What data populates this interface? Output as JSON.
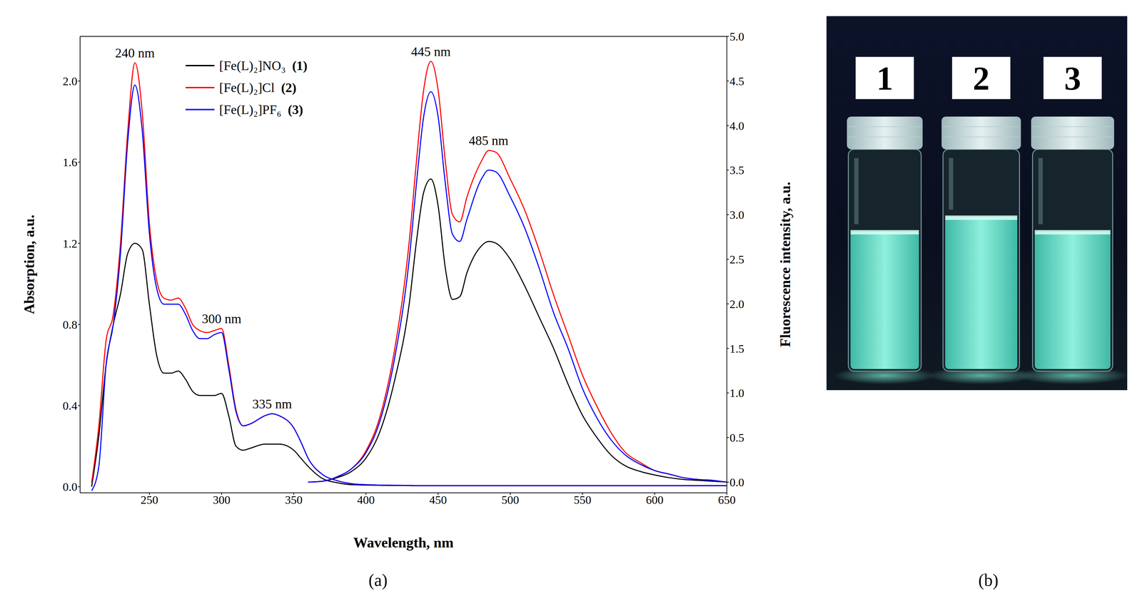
{
  "chart_data": {
    "type": "line",
    "panel_label": "(a)",
    "x_label": "Wavelength, nm",
    "y_label": "Absorption, a.u.",
    "y2_label": "Fluorescence intensity, a.u.",
    "x": [
      210,
      215,
      220,
      225,
      230,
      235,
      240,
      245,
      250,
      255,
      260,
      265,
      270,
      275,
      280,
      285,
      290,
      295,
      300,
      305,
      310,
      315,
      320,
      330,
      335,
      340,
      350,
      355,
      360,
      370,
      380,
      390,
      400,
      410,
      420,
      430,
      435,
      440,
      445,
      450,
      455,
      460,
      465,
      470,
      480,
      485,
      490,
      500,
      510,
      520,
      530,
      540,
      550,
      560,
      570,
      580,
      590,
      600,
      610,
      620,
      630,
      640,
      650
    ],
    "xlim": [
      202,
      650
    ],
    "xticks": [
      250,
      300,
      350,
      400,
      450,
      500,
      550,
      600,
      650
    ],
    "ylim": [
      -0.03,
      2.22
    ],
    "yticks": [
      {
        "value": 0,
        "label": "0.0"
      },
      0.4,
      0.8,
      1.2,
      1.6,
      {
        "value": 2,
        "label": "2.0"
      }
    ],
    "y2lim": [
      -0.12,
      5.0
    ],
    "y2ticks": [
      {
        "value": 0,
        "label": "0.0"
      },
      0.5,
      {
        "value": 1,
        "label": "1.0"
      },
      1.5,
      {
        "value": 2,
        "label": "2.0"
      },
      2.5,
      {
        "value": 3,
        "label": "3.0"
      },
      3.5,
      {
        "value": 4,
        "label": "4.0"
      },
      4.5,
      {
        "value": 5,
        "label": "5.0"
      }
    ],
    "grid": false,
    "legend": "upper left",
    "series": [
      {
        "name": "[Fe(L)₂]NO₃ (1)",
        "color": "#000000",
        "values": [
          0,
          0.25,
          0.6,
          0.8,
          0.95,
          1.15,
          1.2,
          1.17,
          0.9,
          0.65,
          0.56,
          0.56,
          0.57,
          0.53,
          0.47,
          0.45,
          0.45,
          0.45,
          0.46,
          0.35,
          0.2,
          0.18,
          0.19,
          0.21,
          0.21,
          0.21,
          0.18,
          0.14,
          0.1,
          0.04,
          0.02,
          0.01,
          0.008,
          0.007,
          0.006,
          0.006,
          0.005,
          0.005,
          0.005,
          0.005,
          0.005,
          0.005,
          0.005,
          0.005,
          0.005,
          0.005,
          0.005,
          0.005,
          0.005,
          0.005,
          0.005,
          0.005,
          0.005,
          0.005,
          0.005,
          0.005,
          0.005,
          0.005,
          0.005,
          0.005,
          0.005,
          0.005,
          0.005
        ]
      },
      {
        "name": "[Fe(L)₂]Cl (2)",
        "color": "#ff0000",
        "values": [
          0.02,
          0.3,
          0.72,
          0.85,
          1.2,
          1.75,
          2.09,
          1.85,
          1.3,
          1.02,
          0.93,
          0.92,
          0.93,
          0.88,
          0.8,
          0.77,
          0.76,
          0.77,
          0.78,
          0.6,
          0.38,
          0.3,
          0.31,
          0.35,
          0.36,
          0.35,
          0.29,
          0.22,
          0.14,
          0.06,
          0.03,
          0.015,
          0.01,
          0.008,
          0.007,
          0.006,
          0.005,
          0.005,
          0.005,
          0.005,
          0.005,
          0.005,
          0.005,
          0.005,
          0.005,
          0.005,
          0.005,
          0.005,
          0.005,
          0.005,
          0.005,
          0.005,
          0.005,
          0.005,
          0.005,
          0.005,
          0.005,
          0.005,
          0.005,
          0.005,
          0.005,
          0.005,
          0.005
        ]
      },
      {
        "name": "[Fe(L)₂]PF₆ (3)",
        "color": "#0000ff",
        "values": [
          -0.02,
          0.1,
          0.6,
          0.8,
          1.15,
          1.7,
          1.98,
          1.76,
          1.25,
          0.98,
          0.9,
          0.9,
          0.9,
          0.85,
          0.77,
          0.73,
          0.73,
          0.75,
          0.76,
          0.58,
          0.37,
          0.3,
          0.31,
          0.35,
          0.36,
          0.35,
          0.29,
          0.22,
          0.14,
          0.06,
          0.03,
          0.015,
          0.01,
          0.008,
          0.007,
          0.006,
          0.005,
          0.005,
          0.005,
          0.005,
          0.005,
          0.005,
          0.005,
          0.005,
          0.005,
          0.005,
          0.005,
          0.005,
          0.005,
          0.005,
          0.005,
          0.005,
          0.005,
          0.005,
          0.005,
          0.005,
          0.005,
          0.005,
          0.005,
          0.005,
          0.005,
          0.005,
          0.005
        ]
      },
      {
        "name": "[Fe(L)₂]NO₃ (1)",
        "color": "#000000",
        "axis": "y2",
        "values": [
          null,
          null,
          null,
          null,
          null,
          null,
          null,
          null,
          null,
          null,
          null,
          null,
          null,
          null,
          null,
          null,
          null,
          null,
          null,
          null,
          null,
          null,
          null,
          null,
          null,
          null,
          null,
          null,
          0,
          0.01,
          0.05,
          0.12,
          0.27,
          0.58,
          1.15,
          2.0,
          2.7,
          3.25,
          3.4,
          3.1,
          2.4,
          2.05,
          2.08,
          2.35,
          2.65,
          2.7,
          2.68,
          2.5,
          2.2,
          1.85,
          1.5,
          1.1,
          0.75,
          0.5,
          0.3,
          0.18,
          0.12,
          0.08,
          0.05,
          0.03,
          0.02,
          0.01,
          0
        ]
      },
      {
        "name": "[Fe(L)₂]Cl (2)",
        "color": "#ff0000",
        "axis": "y2",
        "values": [
          null,
          null,
          null,
          null,
          null,
          null,
          null,
          null,
          null,
          null,
          null,
          null,
          null,
          null,
          null,
          null,
          null,
          null,
          null,
          null,
          null,
          null,
          null,
          null,
          null,
          null,
          null,
          null,
          0,
          0.01,
          0.06,
          0.15,
          0.35,
          0.75,
          1.5,
          2.7,
          3.6,
          4.4,
          4.72,
          4.4,
          3.6,
          3.0,
          2.92,
          3.2,
          3.6,
          3.72,
          3.7,
          3.4,
          3.05,
          2.6,
          2.1,
          1.65,
          1.2,
          0.85,
          0.55,
          0.33,
          0.22,
          0.13,
          0.09,
          0.05,
          0.03,
          0.02,
          0
        ]
      },
      {
        "name": "[Fe(L)₂]PF₆ (3)",
        "color": "#0000ff",
        "axis": "y2",
        "values": [
          null,
          null,
          null,
          null,
          null,
          null,
          null,
          null,
          null,
          null,
          null,
          null,
          null,
          null,
          null,
          null,
          null,
          null,
          null,
          null,
          null,
          null,
          null,
          null,
          null,
          null,
          null,
          null,
          0,
          0.01,
          0.06,
          0.15,
          0.33,
          0.7,
          1.4,
          2.5,
          3.35,
          4.1,
          4.38,
          4.1,
          3.35,
          2.78,
          2.7,
          2.95,
          3.4,
          3.5,
          3.48,
          3.2,
          2.85,
          2.4,
          1.9,
          1.5,
          1.05,
          0.72,
          0.47,
          0.3,
          0.2,
          0.13,
          0.09,
          0.05,
          0.03,
          0.02,
          0
        ]
      }
    ],
    "annotations": [
      {
        "text": "240 nm",
        "x": 240,
        "y": 2.09
      },
      {
        "text": "300 nm",
        "x": 300,
        "y": 0.78
      },
      {
        "text": "335 nm",
        "x": 335,
        "y": 0.36
      },
      {
        "text": "445 nm",
        "x": 445,
        "y": 4.72,
        "axis": "y2"
      },
      {
        "text": "485 nm",
        "x": 485,
        "y": 3.72,
        "axis": "y2"
      }
    ]
  },
  "photo": {
    "panel_label": "(b)",
    "vial_labels": [
      "1",
      "2",
      "3"
    ]
  }
}
